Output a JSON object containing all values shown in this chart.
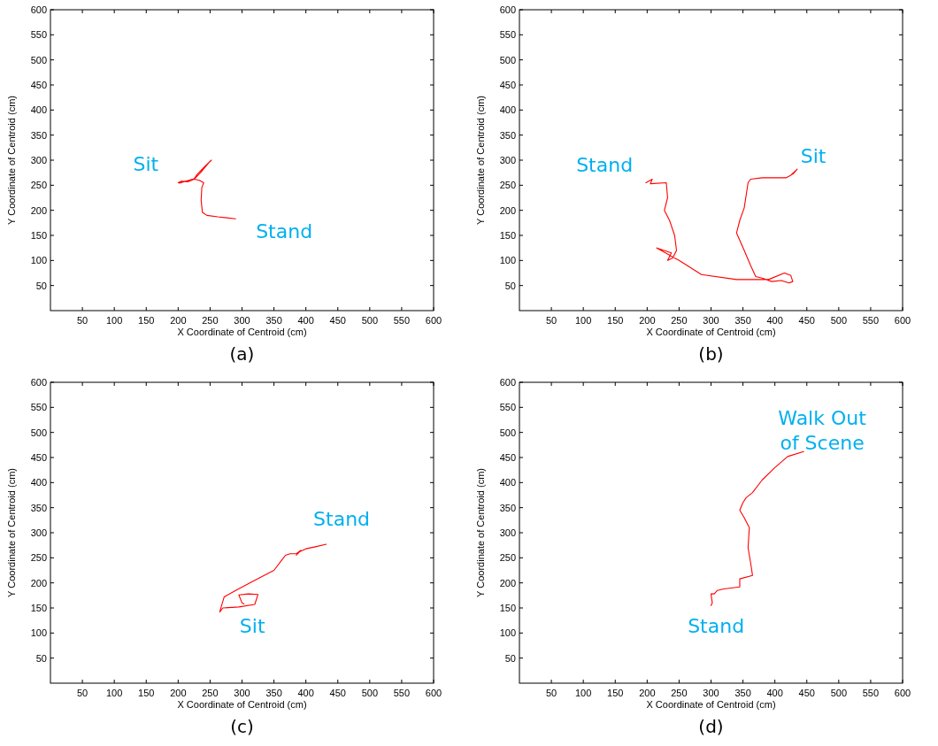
{
  "chart_data": [
    {
      "type": "line",
      "xlabel": "X Coordinate of Centroid (cm)",
      "ylabel": "Y Coordinate of Centroid (cm)",
      "xlim": [
        0,
        600
      ],
      "ylim": [
        0,
        600
      ],
      "xticks": [
        50,
        100,
        150,
        200,
        250,
        300,
        350,
        400,
        450,
        500,
        550,
        600
      ],
      "yticks": [
        50,
        100,
        150,
        200,
        250,
        300,
        350,
        400,
        450,
        500,
        550,
        600
      ],
      "grid": false,
      "marker": "none",
      "line_style": "solid",
      "series": [
        {
          "color": "#ff0000",
          "x": [
            290,
            262,
            245,
            238,
            236,
            237,
            240,
            233,
            225,
            212,
            200,
            205,
            215,
            225,
            235,
            248,
            252,
            240,
            230,
            225,
            212,
            202
          ],
          "values": [
            183,
            187,
            190,
            196,
            220,
            245,
            255,
            260,
            262,
            258,
            255,
            258,
            257,
            262,
            275,
            295,
            300,
            285,
            272,
            263,
            258,
            254
          ]
        }
      ],
      "annotations": [
        "Sit",
        "Stand",
        "(a)"
      ]
    },
    {
      "type": "line",
      "xlabel": "X Coordinate of Centroid (cm)",
      "ylabel": "Y Coordinate of Centroid (cm)",
      "xlim": [
        0,
        600
      ],
      "ylim": [
        0,
        600
      ],
      "xticks": [
        50,
        100,
        150,
        200,
        250,
        300,
        350,
        400,
        450,
        500,
        550,
        600
      ],
      "yticks": [
        50,
        100,
        150,
        200,
        250,
        300,
        350,
        400,
        450,
        500,
        550,
        600
      ],
      "grid": false,
      "marker": "none",
      "line_style": "solid",
      "series": [
        {
          "color": "#ff0000",
          "x": [
            198,
            208,
            205,
            230,
            232,
            227,
            235,
            243,
            246,
            240,
            232,
            238,
            215,
            250,
            285,
            340,
            390,
            415,
            425,
            428,
            422,
            410,
            395,
            380,
            370,
            362,
            352,
            340,
            345,
            352,
            358,
            362,
            380,
            400,
            418,
            425,
            435,
            428
          ],
          "values": [
            255,
            262,
            253,
            255,
            225,
            200,
            180,
            150,
            120,
            105,
            100,
            115,
            125,
            100,
            72,
            62,
            62,
            75,
            70,
            58,
            55,
            60,
            58,
            65,
            68,
            90,
            120,
            155,
            180,
            205,
            255,
            262,
            265,
            265,
            265,
            270,
            282,
            272
          ]
        }
      ],
      "annotations": [
        "Stand",
        "Sit",
        "(b)"
      ]
    },
    {
      "type": "line",
      "xlabel": "X Coordinate of Centroid (cm)",
      "ylabel": "Y Coordinate of Centroid (cm)",
      "xlim": [
        0,
        600
      ],
      "ylim": [
        0,
        600
      ],
      "xticks": [
        50,
        100,
        150,
        200,
        250,
        300,
        350,
        400,
        450,
        500,
        550,
        600
      ],
      "yticks": [
        50,
        100,
        150,
        200,
        250,
        300,
        350,
        400,
        450,
        500,
        550,
        600
      ],
      "grid": false,
      "marker": "none",
      "line_style": "solid",
      "series": [
        {
          "color": "#ff0000",
          "x": [
            432,
            415,
            400,
            390,
            385,
            392,
            385,
            375,
            368,
            362,
            350,
            320,
            290,
            272,
            265,
            270,
            295,
            320,
            325,
            310,
            295,
            300,
            303
          ],
          "values": [
            277,
            272,
            268,
            262,
            255,
            265,
            258,
            258,
            255,
            245,
            225,
            205,
            185,
            172,
            142,
            150,
            152,
            157,
            177,
            178,
            176,
            160,
            158
          ]
        }
      ],
      "annotations": [
        "Stand",
        "Sit",
        "(c)"
      ]
    },
    {
      "type": "line",
      "xlabel": "X Coordinate of Centroid (cm)",
      "ylabel": "Y Coordinate of Centroid (cm)",
      "xlim": [
        0,
        600
      ],
      "ylim": [
        0,
        600
      ],
      "xticks": [
        50,
        100,
        150,
        200,
        250,
        300,
        350,
        400,
        450,
        500,
        550,
        600
      ],
      "yticks": [
        50,
        100,
        150,
        200,
        250,
        300,
        350,
        400,
        450,
        500,
        550,
        600
      ],
      "grid": false,
      "marker": "none",
      "line_style": "solid",
      "series": [
        {
          "color": "#ff0000",
          "x": [
            445,
            420,
            400,
            380,
            365,
            355,
            350,
            345,
            352,
            360,
            358,
            362,
            365,
            345,
            345,
            320,
            310,
            305,
            300,
            302,
            300
          ],
          "values": [
            462,
            452,
            430,
            405,
            380,
            370,
            360,
            345,
            330,
            310,
            270,
            240,
            215,
            208,
            192,
            188,
            185,
            178,
            178,
            160,
            155
          ]
        }
      ],
      "annotations": [
        "Stand",
        "Walk Out\nof Scene",
        "(d)"
      ]
    }
  ]
}
